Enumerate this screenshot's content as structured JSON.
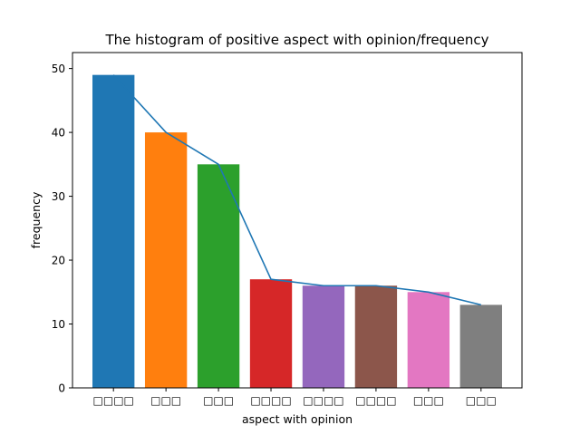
{
  "chart_data": {
    "type": "bar",
    "title": "The histogram of positive aspect with opinion/frequency",
    "xlabel": "aspect with opinion",
    "ylabel": "frequency",
    "categories": [
      "□□□□",
      "□□□",
      "□□□",
      "□□□□",
      "□□□□",
      "□□□□",
      "□□□",
      "□□□"
    ],
    "values": [
      49,
      40,
      35,
      17,
      16,
      16,
      15,
      13
    ],
    "line_overlay": true,
    "ylim": [
      0,
      52.5
    ],
    "yticks": [
      0,
      10,
      20,
      30,
      40,
      50
    ],
    "bar_colors": [
      "#1f77b4",
      "#ff7f0e",
      "#2ca02c",
      "#d62728",
      "#9467bd",
      "#8c564b",
      "#e377c2",
      "#7f7f7f"
    ],
    "line_color": "#1f77b4",
    "grid": false,
    "legend": "none"
  }
}
